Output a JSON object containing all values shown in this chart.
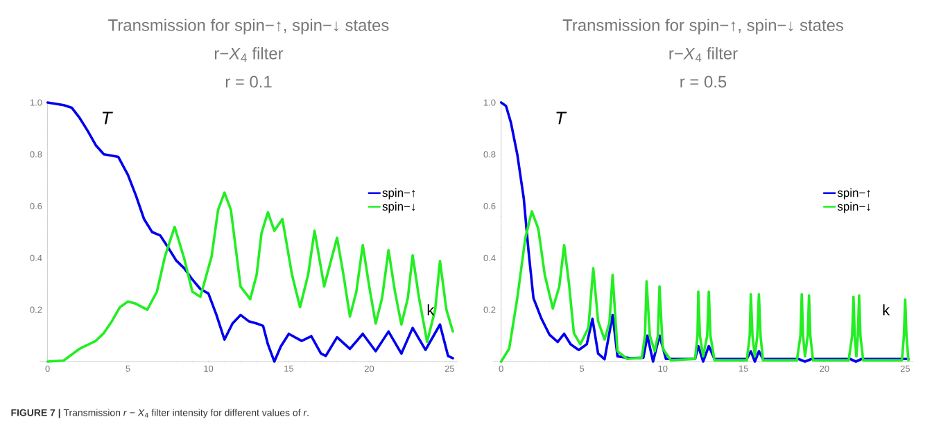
{
  "chart_data": [
    {
      "type": "line",
      "title": "Transmission for spin−↑, spin−↓ states",
      "subtitle": "r−*X*$_{4}$ filter",
      "annotations": [
        "r = 0.1",
        "**FIGURE 7 |** Transmission *r* − *X*$_{4}$ filter intensity for different values of *r*."
      ],
      "xlabel": "k",
      "ylabel": "T",
      "xlim": [
        -0.5,
        25.5
      ],
      "ylim": [
        0,
        1
      ],
      "xticks": [
        0,
        5,
        10,
        15,
        20,
        25
      ],
      "yticks": [
        0.2,
        0.4,
        0.6,
        0.8,
        {
          "value": 1,
          "label": "1.0"
        }
      ],
      "legend": "right",
      "series": [
        {
          "name": "spin−↑",
          "color": "#0000ee",
          "x": [
            0,
            1,
            1.5,
            2,
            2.5,
            3,
            3.5,
            4,
            4.4,
            5,
            5.5,
            6,
            6.5,
            7,
            7.5,
            8,
            8.5,
            9,
            9.5,
            10,
            10.5,
            11,
            11.5,
            12,
            12.5,
            13,
            13.4,
            13.7,
            14.1,
            14.5,
            15,
            15.5,
            15.8,
            16.4,
            17,
            17.3,
            18,
            18.8,
            19.6,
            20.4,
            21.2,
            22,
            22.7,
            23.5,
            24.4,
            24.9,
            25.2
          ],
          "values": [
            1.0,
            0.99,
            0.98,
            0.94,
            0.89,
            0.835,
            0.8,
            0.795,
            0.79,
            0.72,
            0.64,
            0.55,
            0.5,
            0.487,
            0.44,
            0.39,
            0.36,
            0.317,
            0.28,
            0.263,
            0.18,
            0.085,
            0.147,
            0.18,
            0.156,
            0.147,
            0.138,
            0.067,
            0.0,
            0.058,
            0.107,
            0.09,
            0.08,
            0.098,
            0.031,
            0.022,
            0.094,
            0.049,
            0.107,
            0.04,
            0.116,
            0.031,
            0.13,
            0.045,
            0.143,
            0.022,
            0.013
          ]
        },
        {
          "name": "spin−↓",
          "color": "#22ee22",
          "x": [
            0,
            1,
            2,
            3,
            3.5,
            4,
            4.5,
            5,
            5.5,
            6.2,
            6.8,
            7.3,
            7.9,
            8.5,
            9,
            9.5,
            10.2,
            10.6,
            11,
            11.4,
            12,
            12.6,
            13,
            13.3,
            13.7,
            14.1,
            14.6,
            15.2,
            15.7,
            16.2,
            16.6,
            17.2,
            18,
            18.4,
            18.8,
            19.2,
            19.6,
            20,
            20.4,
            20.8,
            21.2,
            21.6,
            22,
            22.4,
            22.7,
            23.1,
            23.6,
            24.1,
            24.4,
            24.8,
            25.2
          ],
          "values": [
            0,
            0.004,
            0.05,
            0.08,
            0.11,
            0.156,
            0.21,
            0.232,
            0.223,
            0.2,
            0.27,
            0.406,
            0.52,
            0.397,
            0.27,
            0.25,
            0.406,
            0.585,
            0.652,
            0.585,
            0.29,
            0.241,
            0.335,
            0.495,
            0.576,
            0.505,
            0.55,
            0.335,
            0.21,
            0.335,
            0.505,
            0.29,
            0.478,
            0.335,
            0.174,
            0.27,
            0.45,
            0.29,
            0.147,
            0.245,
            0.43,
            0.27,
            0.143,
            0.245,
            0.41,
            0.245,
            0.076,
            0.2,
            0.388,
            0.2,
            0.116
          ]
        }
      ]
    },
    {
      "type": "line",
      "title": "Transmission for spin−↑, spin−↓ states",
      "subtitle": "r−*X*$_{4}$ filter",
      "annotations": [
        "r = 0.5"
      ],
      "xlabel": "k",
      "ylabel": "T",
      "xlim": [
        -0.5,
        25.5
      ],
      "ylim": [
        0,
        1
      ],
      "xticks": [
        0,
        5,
        10,
        15,
        20,
        25
      ],
      "yticks": [
        0.2,
        0.4,
        0.6,
        0.8,
        {
          "value": 1,
          "label": "1.0"
        }
      ],
      "legend": "right",
      "series": [
        {
          "name": "spin−↑",
          "color": "#0000ee",
          "x": [
            0,
            0.3,
            0.6,
            1,
            1.4,
            1.7,
            2,
            2.5,
            3,
            3.5,
            3.9,
            4.3,
            4.8,
            5.3,
            5.65,
            6,
            6.4,
            6.9,
            7.2,
            8,
            8.8,
            9.05,
            9.4,
            9.8,
            10.2,
            12.0,
            12.2,
            12.5,
            12.85,
            13.2,
            15.2,
            15.45,
            15.7,
            15.95,
            16.2,
            18.4,
            18.8,
            19.2,
            21.6,
            21.95,
            22.3,
            25.2
          ],
          "values": [
            1.0,
            0.987,
            0.924,
            0.8,
            0.63,
            0.424,
            0.245,
            0.165,
            0.103,
            0.076,
            0.107,
            0.067,
            0.045,
            0.067,
            0.165,
            0.031,
            0.009,
            0.18,
            0.02,
            0.013,
            0.015,
            0.1,
            0.0,
            0.1,
            0.01,
            0.01,
            0.06,
            0.0,
            0.06,
            0.01,
            0.01,
            0.04,
            0.0,
            0.04,
            0.01,
            0.01,
            0.0,
            0.01,
            0.01,
            0.0,
            0.01,
            0.01
          ]
        },
        {
          "name": "spin−↓",
          "color": "#22ee22",
          "x": [
            0,
            0.5,
            1,
            1.5,
            1.9,
            2.3,
            2.7,
            3.2,
            3.6,
            3.9,
            4.2,
            4.5,
            4.9,
            5.4,
            5.7,
            6.0,
            6.4,
            6.7,
            6.9,
            7.2,
            7.8,
            8.7,
            8.9,
            9.0,
            9.2,
            9.5,
            9.7,
            9.8,
            10.0,
            10.5,
            12.0,
            12.15,
            12.2,
            12.3,
            12.5,
            12.75,
            12.85,
            12.95,
            13.2,
            15.2,
            15.38,
            15.45,
            15.55,
            15.7,
            15.85,
            15.95,
            16.05,
            16.2,
            18.3,
            18.52,
            18.6,
            18.68,
            18.8,
            18.97,
            19.05,
            19.13,
            19.3,
            21.5,
            21.72,
            21.8,
            21.88,
            21.98,
            22.07,
            22.15,
            22.23,
            22.4,
            24.8,
            24.92,
            25.0,
            25.08,
            25.2
          ],
          "values": [
            0,
            0.05,
            0.245,
            0.478,
            0.58,
            0.513,
            0.335,
            0.205,
            0.29,
            0.45,
            0.3,
            0.11,
            0.067,
            0.13,
            0.36,
            0.156,
            0.085,
            0.15,
            0.335,
            0.04,
            0.01,
            0.015,
            0.1,
            0.31,
            0.1,
            0.04,
            0.1,
            0.29,
            0.05,
            0.005,
            0.01,
            0.1,
            0.27,
            0.1,
            0.02,
            0.1,
            0.27,
            0.1,
            0.005,
            0.005,
            0.1,
            0.26,
            0.1,
            0.02,
            0.1,
            0.26,
            0.1,
            0.005,
            0.005,
            0.1,
            0.26,
            0.1,
            0.02,
            0.1,
            0.255,
            0.1,
            0.005,
            0.005,
            0.1,
            0.25,
            0.1,
            0.02,
            0.1,
            0.255,
            0.1,
            0.005,
            0.005,
            0.1,
            0.24,
            0.1,
            0.005
          ]
        }
      ]
    }
  ]
}
